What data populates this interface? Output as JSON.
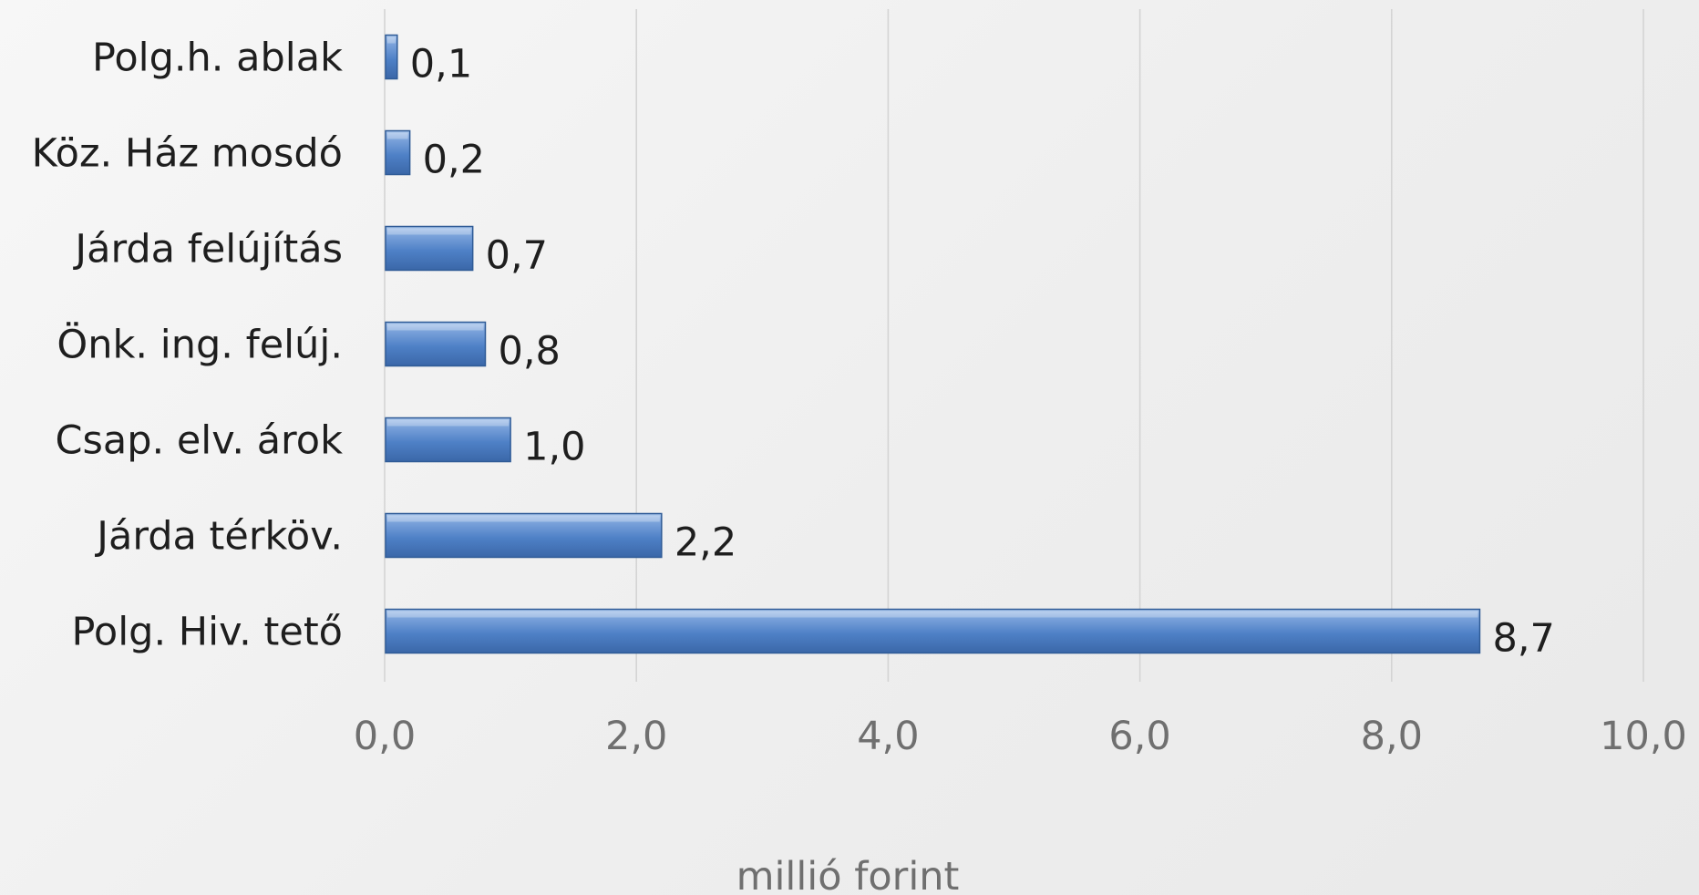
{
  "chart_data": {
    "type": "bar",
    "orientation": "horizontal",
    "categories": [
      "Polg.h. ablak",
      "Köz. Ház mosdó",
      "Járda felújítás",
      "Önk. ing. felúj.",
      "Csap. elv. árok",
      "Járda térköv.",
      "Polg. Hiv. tető"
    ],
    "values": [
      0.1,
      0.2,
      0.7,
      0.8,
      1.0,
      2.2,
      8.7
    ],
    "value_labels": [
      "0,1",
      "0,2",
      "0,7",
      "0,8",
      "1,0",
      "2,2",
      "8,7"
    ],
    "xlabel": "millió forint",
    "xlim": [
      0,
      10
    ],
    "xticks": [
      0,
      2,
      4,
      6,
      8,
      10
    ],
    "xtick_labels": [
      "0,0",
      "2,0",
      "4,0",
      "6,0",
      "8,0",
      "10,0"
    ],
    "grid": true,
    "legend": "none",
    "bar_color": "#4f81bd"
  }
}
